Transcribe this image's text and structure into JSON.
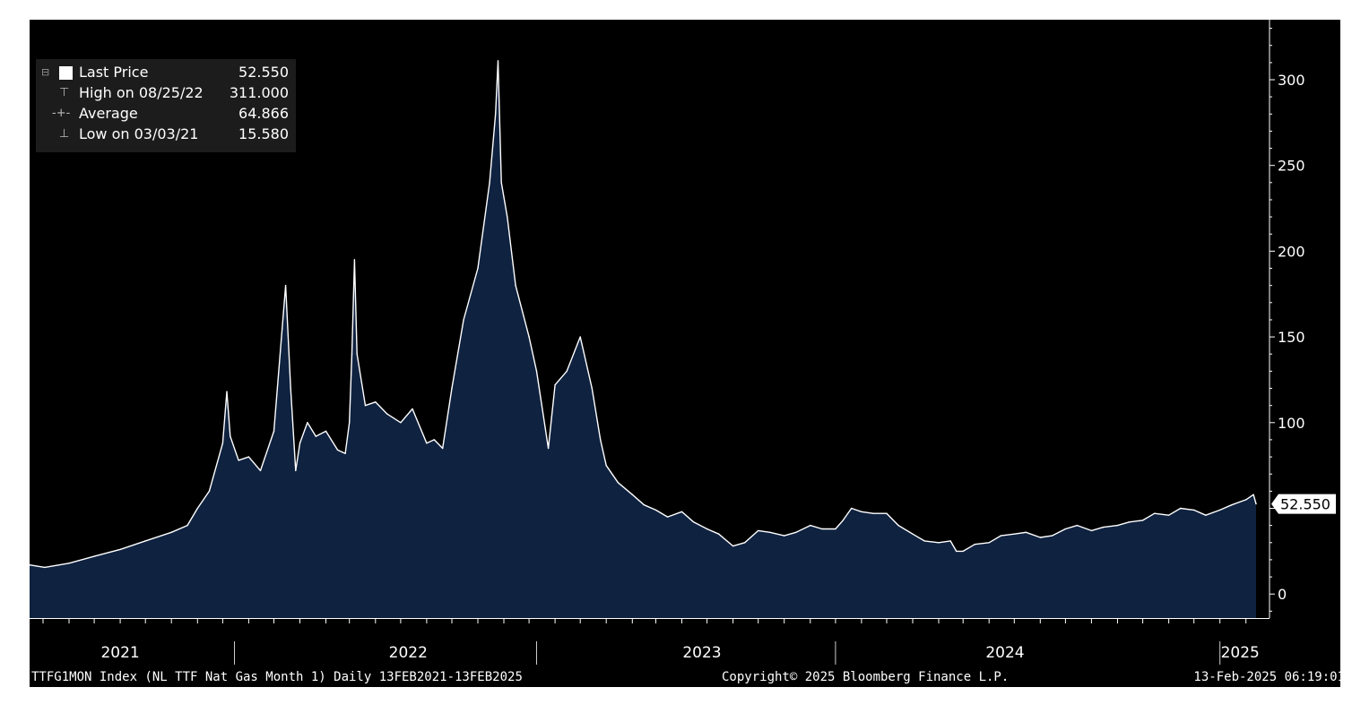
{
  "footer": {
    "ticker": "TTFG1MON Index (NL TTF Nat Gas Month 1)  Daily 13FEB2021-13FEB2025",
    "copyright": "Copyright© 2025 Bloomberg Finance L.P.",
    "timestamp": "13-Feb-2025 06:19:01"
  },
  "legend": {
    "items": [
      {
        "label": "Last Price",
        "value": "52.550",
        "symbol": "swatch"
      },
      {
        "label": "High on 08/25/22",
        "value": "311.000",
        "symbol": "T"
      },
      {
        "label": "Average",
        "value": "64.866",
        "symbol": "-+-"
      },
      {
        "label": "Low on 03/03/21",
        "value": "15.580",
        "symbol": "⊥"
      }
    ]
  },
  "colors": {
    "background": "#000000",
    "area_fill": "#0f2240",
    "line": "#ffffff",
    "legend_bg": "#1c1c1c"
  },
  "chart_data": {
    "type": "area",
    "series": [
      {
        "name": "Last Price",
        "x": [
          "2021-02-13",
          "2021-03-03",
          "2021-04-01",
          "2021-05-01",
          "2021-06-01",
          "2021-07-01",
          "2021-08-01",
          "2021-08-20",
          "2021-09-01",
          "2021-09-15",
          "2021-10-01",
          "2021-10-06",
          "2021-10-10",
          "2021-10-20",
          "2021-11-01",
          "2021-11-15",
          "2021-12-01",
          "2021-12-15",
          "2021-12-21",
          "2021-12-27",
          "2022-01-01",
          "2022-01-10",
          "2022-01-20",
          "2022-02-01",
          "2022-02-15",
          "2022-02-24",
          "2022-03-01",
          "2022-03-04",
          "2022-03-07",
          "2022-03-10",
          "2022-03-20",
          "2022-04-01",
          "2022-04-15",
          "2022-05-01",
          "2022-05-15",
          "2022-06-01",
          "2022-06-10",
          "2022-06-20",
          "2022-07-01",
          "2022-07-15",
          "2022-08-01",
          "2022-08-15",
          "2022-08-22",
          "2022-08-25",
          "2022-08-29",
          "2022-09-05",
          "2022-09-15",
          "2022-10-01",
          "2022-10-10",
          "2022-10-24",
          "2022-11-01",
          "2022-11-15",
          "2022-12-01",
          "2022-12-15",
          "2022-12-25",
          "2023-01-01",
          "2023-01-15",
          "2023-02-01",
          "2023-02-15",
          "2023-03-01",
          "2023-03-15",
          "2023-04-01",
          "2023-04-15",
          "2023-05-01",
          "2023-05-15",
          "2023-06-01",
          "2023-06-15",
          "2023-07-01",
          "2023-07-15",
          "2023-08-01",
          "2023-08-15",
          "2023-09-01",
          "2023-09-15",
          "2023-10-01",
          "2023-10-10",
          "2023-10-20",
          "2023-11-01",
          "2023-11-15",
          "2023-12-01",
          "2023-12-15",
          "2024-01-01",
          "2024-01-15",
          "2024-02-01",
          "2024-02-15",
          "2024-02-22",
          "2024-03-01",
          "2024-03-15",
          "2024-04-01",
          "2024-04-15",
          "2024-05-01",
          "2024-05-15",
          "2024-06-01",
          "2024-06-15",
          "2024-07-01",
          "2024-07-15",
          "2024-08-01",
          "2024-08-15",
          "2024-09-01",
          "2024-09-15",
          "2024-10-01",
          "2024-10-15",
          "2024-11-01",
          "2024-11-15",
          "2024-12-01",
          "2024-12-15",
          "2025-01-01",
          "2025-01-15",
          "2025-02-01",
          "2025-02-10",
          "2025-02-13"
        ],
        "values": [
          17,
          15.58,
          18,
          22,
          26,
          31,
          36,
          40,
          50,
          60,
          88,
          118,
          92,
          78,
          80,
          72,
          95,
          180,
          120,
          72,
          88,
          100,
          92,
          95,
          84,
          82,
          100,
          140,
          195,
          140,
          110,
          112,
          105,
          100,
          108,
          88,
          90,
          85,
          120,
          160,
          190,
          240,
          280,
          311,
          240,
          220,
          180,
          150,
          130,
          85,
          122,
          130,
          150,
          120,
          90,
          75,
          65,
          58,
          52,
          49,
          45,
          48,
          42,
          38,
          35,
          28,
          30,
          37,
          36,
          34,
          36,
          40,
          38,
          38,
          43,
          50,
          48,
          47,
          47,
          40,
          35,
          31,
          30,
          31,
          25,
          25,
          29,
          30,
          34,
          35,
          36,
          33,
          34,
          38,
          40,
          37,
          39,
          40,
          42,
          43,
          47,
          46,
          50,
          49,
          46,
          49,
          52,
          55,
          58,
          52.55
        ]
      }
    ],
    "ylim": [
      -14,
      335
    ],
    "yticks": [
      0,
      50,
      100,
      150,
      200,
      250,
      300
    ],
    "xticks": [
      "2021",
      "2022",
      "2023",
      "2024",
      "2025"
    ],
    "x_range": [
      "2021-02-13",
      "2025-02-28"
    ],
    "last_price_label": "52.550",
    "grid": false,
    "legend_position": "top-left"
  }
}
